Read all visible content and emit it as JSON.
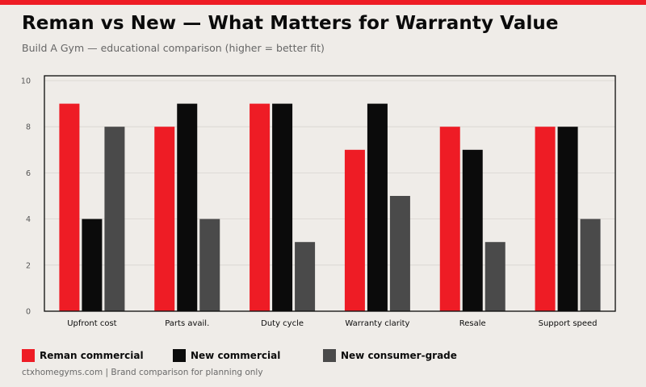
{
  "header": {
    "title": "Reman vs New — What Matters for Warranty Value",
    "subtitle": "Build A Gym — educational comparison (higher = better fit)"
  },
  "footer": {
    "text": "ctxhomegyms.com  |  Brand comparison for planning only"
  },
  "colors": {
    "accent": "#ee1c25",
    "reman": "#ee1c25",
    "new_commercial": "#0b0b0b",
    "consumer": "#4a4a4a",
    "background": "#efece8"
  },
  "chart_data": {
    "type": "bar",
    "categories": [
      "Upfront cost",
      "Parts avail.",
      "Duty cycle",
      "Warranty clarity",
      "Resale",
      "Support speed"
    ],
    "series": [
      {
        "name": "Reman commercial",
        "color": "#ee1c25",
        "values": [
          9,
          8,
          9,
          7,
          8,
          8
        ]
      },
      {
        "name": "New commercial",
        "color": "#0b0b0b",
        "values": [
          4,
          9,
          9,
          9,
          7,
          8
        ]
      },
      {
        "name": "New consumer-grade",
        "color": "#4a4a4a",
        "values": [
          8,
          4,
          3,
          5,
          3,
          4
        ]
      }
    ],
    "ylim": [
      0,
      10
    ],
    "yticks": [
      "0",
      "2",
      "4",
      "6",
      "8",
      "10"
    ],
    "grid": true,
    "legend_position": "bottom"
  }
}
